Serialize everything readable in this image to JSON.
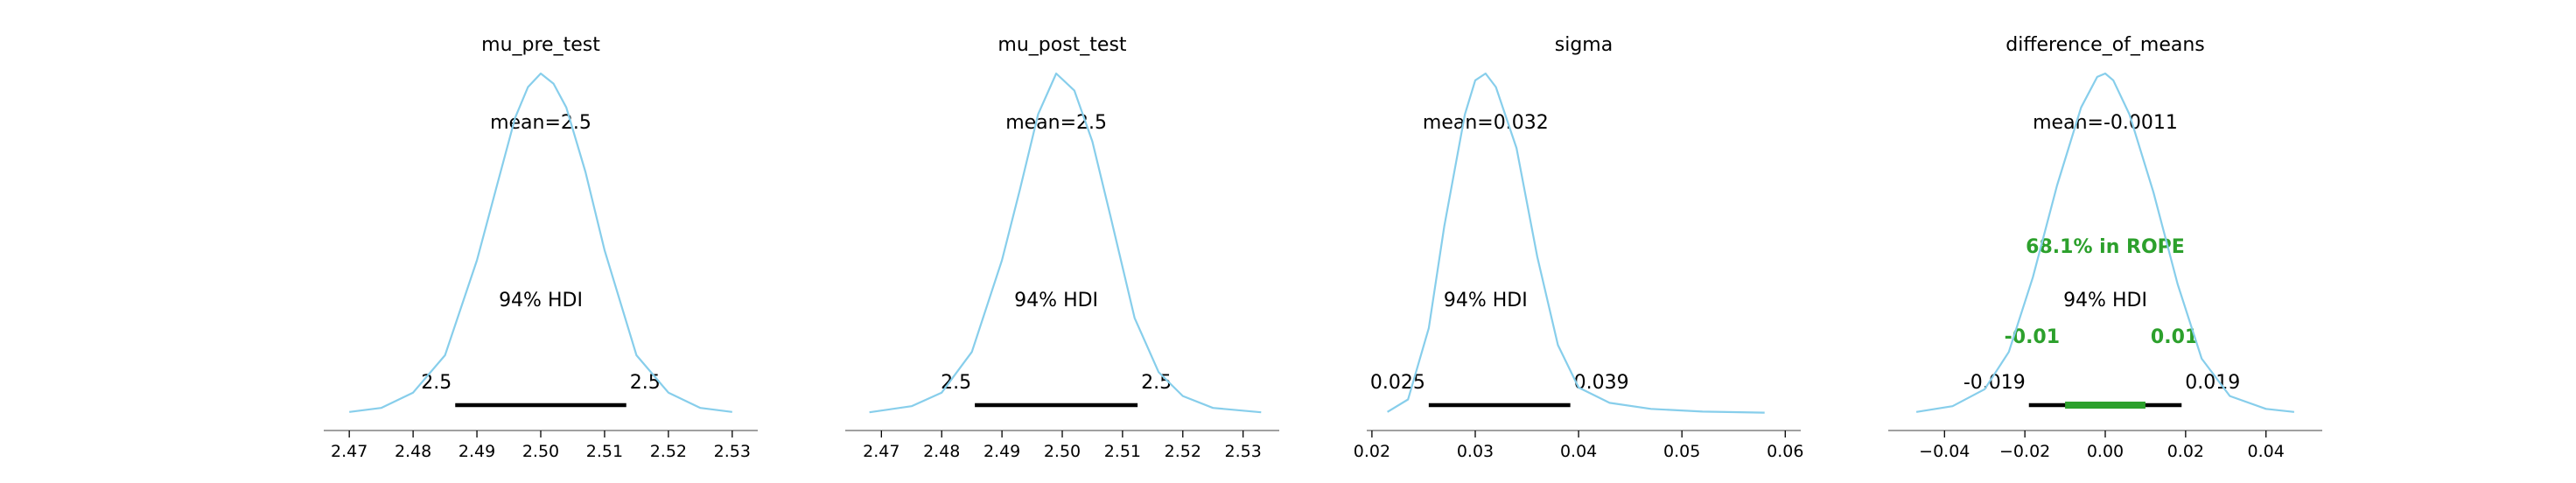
{
  "chart_data": [
    {
      "type": "line",
      "title": "mu_pre_test",
      "mean_label": "mean=2.5",
      "hdi_label": "94% HDI",
      "hdi": [
        2.4866,
        2.5134
      ],
      "hdi_low_label": "2.5",
      "hdi_high_label": "2.5",
      "xlim": [
        2.466,
        2.534
      ],
      "ticks": [
        2.47,
        2.48,
        2.49,
        2.5,
        2.51,
        2.52,
        2.53
      ],
      "tick_labels": [
        "2.47",
        "2.48",
        "2.49",
        "2.50",
        "2.51",
        "2.52",
        "2.53"
      ],
      "x": [
        2.47,
        2.475,
        2.48,
        2.485,
        2.49,
        2.493,
        2.496,
        2.498,
        2.5,
        2.502,
        2.504,
        2.507,
        2.51,
        2.515,
        2.52,
        2.525,
        2.53
      ],
      "y": [
        0.003,
        0.015,
        0.06,
        0.17,
        0.45,
        0.66,
        0.87,
        0.96,
        1.0,
        0.97,
        0.9,
        0.71,
        0.48,
        0.17,
        0.06,
        0.015,
        0.003
      ]
    },
    {
      "type": "line",
      "title": "mu_post_test",
      "mean_label": "mean=2.5",
      "hdi_label": "94% HDI",
      "hdi": [
        2.4855,
        2.5125
      ],
      "hdi_low_label": "2.5",
      "hdi_high_label": "2.5",
      "xlim": [
        2.464,
        2.536
      ],
      "ticks": [
        2.47,
        2.48,
        2.49,
        2.5,
        2.51,
        2.52,
        2.53
      ],
      "tick_labels": [
        "2.47",
        "2.48",
        "2.49",
        "2.50",
        "2.51",
        "2.52",
        "2.53"
      ],
      "x": [
        2.468,
        2.475,
        2.48,
        2.485,
        2.49,
        2.493,
        2.496,
        2.499,
        2.502,
        2.505,
        2.508,
        2.512,
        2.516,
        2.52,
        2.525,
        2.533
      ],
      "y": [
        0.002,
        0.02,
        0.06,
        0.18,
        0.45,
        0.66,
        0.88,
        1.0,
        0.95,
        0.8,
        0.58,
        0.28,
        0.12,
        0.05,
        0.015,
        0.002
      ]
    },
    {
      "type": "line",
      "title": "sigma",
      "mean_label": "mean=0.032",
      "hdi_label": "94% HDI",
      "hdi": [
        0.0255,
        0.0392
      ],
      "hdi_low_label": "0.025",
      "hdi_high_label": "0.039",
      "xlim": [
        0.0195,
        0.0615
      ],
      "ticks": [
        0.02,
        0.03,
        0.04,
        0.05,
        0.06
      ],
      "tick_labels": [
        "0.02",
        "0.03",
        "0.04",
        "0.05",
        "0.06"
      ],
      "x": [
        0.0215,
        0.0235,
        0.0255,
        0.027,
        0.029,
        0.03,
        0.031,
        0.032,
        0.034,
        0.036,
        0.038,
        0.04,
        0.043,
        0.047,
        0.052,
        0.058
      ],
      "y": [
        0.003,
        0.04,
        0.25,
        0.55,
        0.88,
        0.98,
        1.0,
        0.96,
        0.78,
        0.46,
        0.2,
        0.075,
        0.03,
        0.012,
        0.004,
        0.001
      ]
    },
    {
      "type": "line",
      "title": "difference_of_means",
      "mean_label": "mean=-0.0011",
      "hdi_label": "94% HDI",
      "hdi": [
        -0.019,
        0.019
      ],
      "hdi_low_label": "-0.019",
      "hdi_high_label": "0.019",
      "rope": [
        -0.01,
        0.01
      ],
      "rope_low_label": "-0.01",
      "rope_high_label": "0.01",
      "rope_label": "68.1% in ROPE",
      "xlim": [
        -0.054,
        0.054
      ],
      "ticks": [
        -0.04,
        -0.02,
        0.0,
        0.02,
        0.04
      ],
      "tick_labels": [
        "−0.04",
        "−0.02",
        "0.00",
        "0.02",
        "0.04"
      ],
      "x": [
        -0.047,
        -0.038,
        -0.03,
        -0.024,
        -0.018,
        -0.012,
        -0.006,
        -0.002,
        0.0,
        0.002,
        0.006,
        0.012,
        0.018,
        0.024,
        0.031,
        0.04,
        0.047
      ],
      "y": [
        0.003,
        0.02,
        0.07,
        0.18,
        0.4,
        0.67,
        0.9,
        0.99,
        1.0,
        0.98,
        0.88,
        0.65,
        0.38,
        0.16,
        0.05,
        0.012,
        0.003
      ]
    }
  ],
  "colors": {
    "kde": "#87ceeb",
    "hdi": "#000000",
    "rope": "#2ca02c",
    "rope_text": "#2ca02c",
    "axis": "#808080",
    "text": "#000000"
  }
}
